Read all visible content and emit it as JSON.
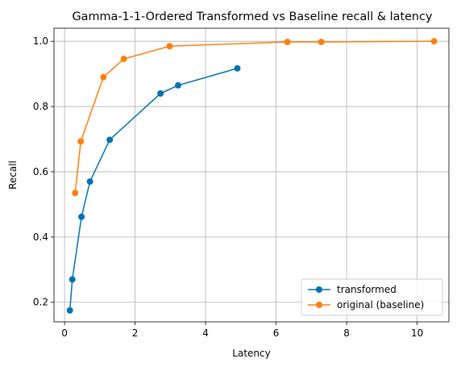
{
  "chart_data": {
    "type": "line",
    "title": "Gamma-1-1-Ordered Transformed vs Baseline recall & latency",
    "xlabel": "Latency",
    "ylabel": "Recall",
    "xlim": [
      -0.3,
      10.9
    ],
    "ylim": [
      0.14,
      1.04
    ],
    "xticks": [
      0,
      2,
      4,
      6,
      8,
      10
    ],
    "yticks": [
      0.2,
      0.4,
      0.6,
      0.8,
      1.0
    ],
    "xtick_labels": [
      "0",
      "2",
      "4",
      "6",
      "8",
      "10"
    ],
    "ytick_labels": [
      "0.2",
      "0.4",
      "0.6",
      "0.8",
      "1.0"
    ],
    "grid": true,
    "legend_position": "lower-right",
    "series": [
      {
        "name": "transformed",
        "color": "#0072B2",
        "marker": "circle",
        "x": [
          0.15,
          0.22,
          0.48,
          0.72,
          1.28,
          2.72,
          3.22,
          4.9
        ],
        "y": [
          0.175,
          0.27,
          0.462,
          0.57,
          0.698,
          0.84,
          0.865,
          0.917
        ]
      },
      {
        "name": "original (baseline)",
        "color": "#FF7F0E",
        "marker": "circle",
        "x": [
          0.3,
          0.46,
          1.1,
          1.68,
          2.98,
          6.32,
          7.28,
          10.48
        ],
        "y": [
          0.535,
          0.693,
          0.89,
          0.946,
          0.985,
          0.998,
          0.998,
          1.0
        ]
      }
    ]
  }
}
